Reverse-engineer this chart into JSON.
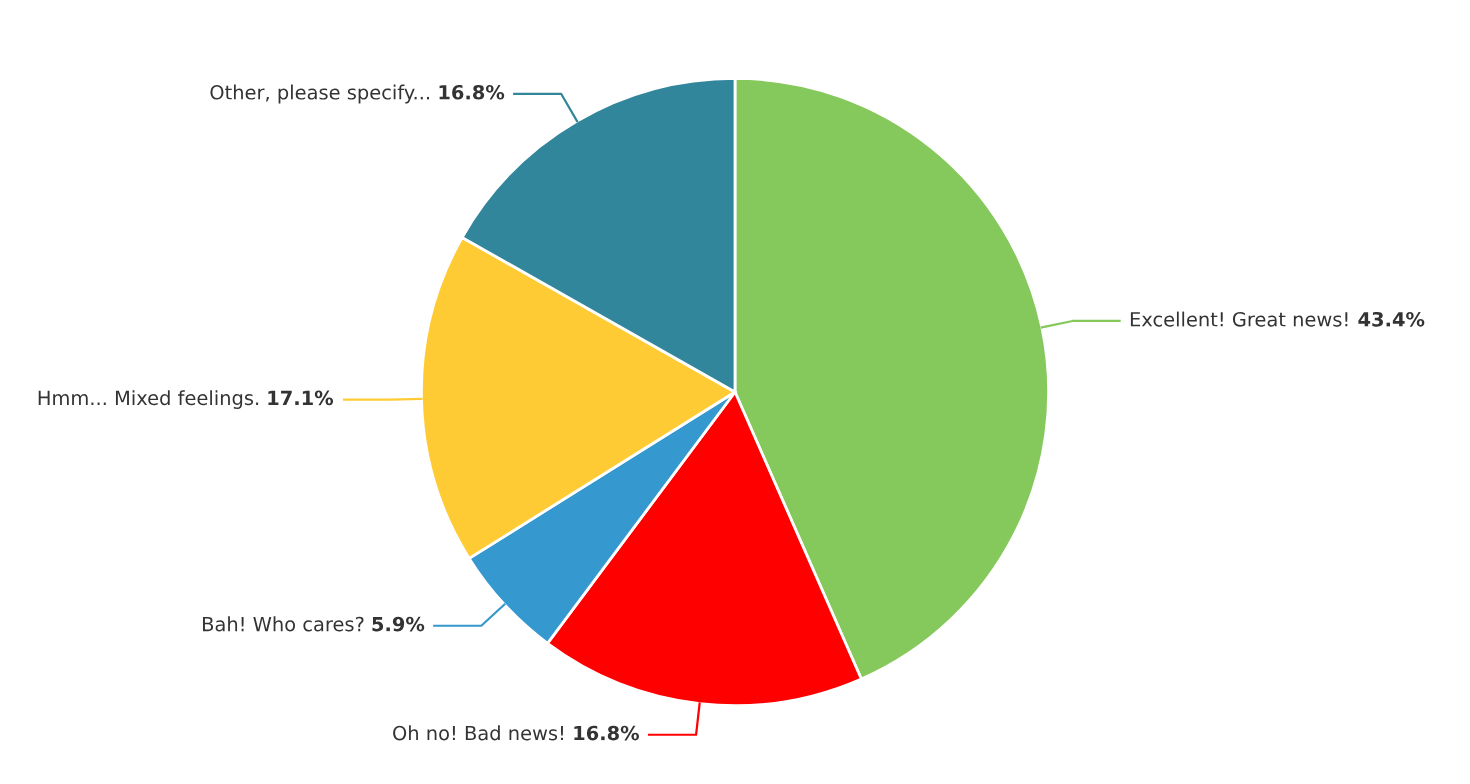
{
  "chart_data": {
    "type": "pie",
    "categories": [
      "Excellent! Great news!",
      "Oh no! Bad news!",
      "Bah! Who cares?",
      "Hmm... Mixed feelings.",
      "Other, please specify..."
    ],
    "values": [
      43.4,
      16.8,
      5.9,
      17.1,
      16.8
    ],
    "value_labels": [
      "43.4%",
      "16.8%",
      "5.9%",
      "17.1%",
      "16.8%"
    ],
    "colors": [
      "#85c85c",
      "#ff0000",
      "#3598cf",
      "#ffcb35",
      "#31869b"
    ]
  }
}
